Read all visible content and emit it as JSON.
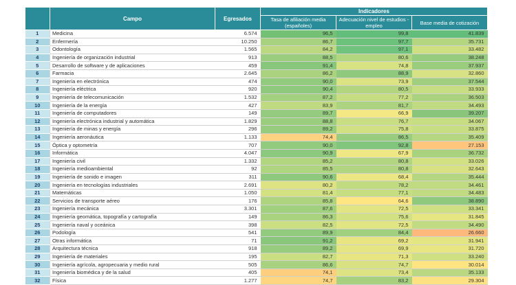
{
  "header": {
    "campo": "Campo",
    "egresados": "Egresados",
    "indicadores": "Indicadores",
    "tasa": "Tasa de afiliación media (españoles)",
    "adecuacion": "Adecuación nivel de estudios - empleo",
    "base": "Base media de cotización"
  },
  "rows": [
    {
      "rank": "1",
      "campo": "Medicina",
      "egresados": "6.574",
      "tasa": "96,5",
      "adec": "99,8",
      "base": "41.839",
      "c1": "#74c074",
      "c2": "#63be7b",
      "c3": "#63be7b"
    },
    {
      "rank": "2",
      "campo": "Enfermería",
      "egresados": "10.250",
      "tasa": "86,7",
      "adec": "97,7",
      "base": "35.731",
      "c1": "#a8d27f",
      "c2": "#6dc27b",
      "c3": "#b4d680"
    },
    {
      "rank": "3",
      "campo": "Odontología",
      "egresados": "1.565",
      "tasa": "84,2",
      "adec": "97,1",
      "base": "33.482",
      "c1": "#bcd981",
      "c2": "#70c37c",
      "c3": "#cfe083"
    },
    {
      "rank": "4",
      "campo": "Ingeniería de organización industrial",
      "egresados": "913",
      "tasa": "88,5",
      "adec": "80,6",
      "base": "38.248",
      "c1": "#9bcd7e",
      "c2": "#b2d580",
      "c3": "#96cc7e"
    },
    {
      "rank": "5",
      "campo": "Desarrollo de software y de aplicaciones",
      "egresados": "459",
      "tasa": "91,4",
      "adec": "74,8",
      "base": "37.937",
      "c1": "#88c67c",
      "c2": "#d7e283",
      "c3": "#9acd7e"
    },
    {
      "rank": "6",
      "campo": "Farmacia",
      "egresados": "2.645",
      "tasa": "86,2",
      "adec": "88,9",
      "base": "32.860",
      "c1": "#abd37f",
      "c2": "#8ec97d",
      "c3": "#d6e283"
    },
    {
      "rank": "7",
      "campo": "Ingeniería en electrónica",
      "egresados": "474",
      "tasa": "90,0",
      "adec": "73,9",
      "base": "37.544",
      "c1": "#92cb7d",
      "c2": "#dbe383",
      "c3": "#9fcf7f"
    },
    {
      "rank": "8",
      "campo": "Ingeniería eléctrica",
      "egresados": "920",
      "tasa": "90,4",
      "adec": "80,5",
      "base": "33.933",
      "c1": "#8fc97d",
      "c2": "#b3d580",
      "c3": "#c8de82"
    },
    {
      "rank": "9",
      "campo": "Ingeniería de telecomunicación",
      "egresados": "1.532",
      "tasa": "87,2",
      "adec": "77,2",
      "base": "36.503",
      "c1": "#a4d17f",
      "c2": "#c6dd82",
      "c3": "#abd37f"
    },
    {
      "rank": "10",
      "campo": "Ingeniería de la energía",
      "egresados": "427",
      "tasa": "83,9",
      "adec": "81,7",
      "base": "34.493",
      "c1": "#bfda81",
      "c2": "#acd37f",
      "c3": "#c0db82"
    },
    {
      "rank": "11",
      "campo": "Ingeniería de computadores",
      "egresados": "149",
      "tasa": "89,7",
      "adec": "66,9",
      "base": "39.207",
      "c1": "#95cb7e",
      "c2": "#f4e884",
      "c3": "#89c67c"
    },
    {
      "rank": "12",
      "campo": "Ingeniería electrónica industrial y automática",
      "egresados": "1.829",
      "tasa": "88,8",
      "adec": "76,7",
      "base": "34.067",
      "c1": "#9acd7e",
      "c2": "#c9de82",
      "c3": "#c6dd82"
    },
    {
      "rank": "13",
      "campo": "Ingeniería de minas y energía",
      "egresados": "296",
      "tasa": "89,2",
      "adec": "75,8",
      "base": "33.875",
      "c1": "#97cc7e",
      "c2": "#d0e082",
      "c3": "#c8de82"
    },
    {
      "rank": "14",
      "campo": "Ingeniería aeronáutica",
      "egresados": "1.133",
      "tasa": "74,4",
      "adec": "86,5",
      "base": "35.409",
      "c1": "#fed280",
      "c2": "#98cc7e",
      "c3": "#b6d781"
    },
    {
      "rank": "15",
      "campo": "Óptica y optometría",
      "egresados": "707",
      "tasa": "90,0",
      "adec": "92,8",
      "base": "27.153",
      "c1": "#92cb7d",
      "c2": "#82c57c",
      "c3": "#fec57d"
    },
    {
      "rank": "16",
      "campo": "Informática",
      "egresados": "4.047",
      "tasa": "90,9",
      "adec": "67,9",
      "base": "36.732",
      "c1": "#8cc87d",
      "c2": "#efe784",
      "c3": "#a9d27f"
    },
    {
      "rank": "17",
      "campo": "Ingeniería civil",
      "egresados": "1.332",
      "tasa": "85,2",
      "adec": "80,8",
      "base": "33.026",
      "c1": "#b2d580",
      "c2": "#b1d580",
      "c3": "#d2e182"
    },
    {
      "rank": "18",
      "campo": "Ingeniería medioambiental",
      "egresados": "92",
      "tasa": "85,5",
      "adec": "80,8",
      "base": "32.643",
      "c1": "#b0d580",
      "c2": "#b1d580",
      "c3": "#d9e283"
    },
    {
      "rank": "19",
      "campo": "Ingeniería de sonido e imagen",
      "egresados": "311",
      "tasa": "90,6",
      "adec": "68,4",
      "base": "35.444",
      "c1": "#8ec97d",
      "c2": "#ece684",
      "c3": "#b6d781"
    },
    {
      "rank": "20",
      "campo": "Ingeniería en tecnologías industriales",
      "egresados": "2.691",
      "tasa": "80,2",
      "adec": "78,2",
      "base": "34.461",
      "c1": "#dde383",
      "c2": "#c1db81",
      "c3": "#c0db82"
    },
    {
      "rank": "21",
      "campo": "Matemáticas",
      "egresados": "1.050",
      "tasa": "81,4",
      "adec": "77,1",
      "base": "34.483",
      "c1": "#d4e182",
      "c2": "#c7dd82",
      "c3": "#c0db82"
    },
    {
      "rank": "22",
      "campo": "Servicios de transporte aéreo",
      "egresados": "176",
      "tasa": "85,8",
      "adec": "64,6",
      "base": "38.890",
      "c1": "#aed480",
      "c2": "#fee683",
      "c3": "#8ec97d"
    },
    {
      "rank": "23",
      "campo": "Ingeniería mecánica",
      "egresados": "3.301",
      "tasa": "87,6",
      "adec": "72,5",
      "base": "33.341",
      "c1": "#a1d07f",
      "c2": "#e2e583",
      "c3": "#cfe083"
    },
    {
      "rank": "24",
      "campo": "Ingeniería geomática, topografía y cartografía",
      "egresados": "149",
      "tasa": "86,3",
      "adec": "75,6",
      "base": "31.845",
      "c1": "#aad37f",
      "c2": "#d2e182",
      "c3": "#e6e683"
    },
    {
      "rank": "25",
      "campo": "Ingeniería naval y oceánica",
      "egresados": "398",
      "tasa": "82,5",
      "adec": "72,5",
      "base": "34.490",
      "c1": "#cbdf82",
      "c2": "#e2e583",
      "c3": "#c0db82"
    },
    {
      "rank": "26",
      "campo": "Podología",
      "egresados": "541",
      "tasa": "89,9",
      "adec": "84,4",
      "base": "26.660",
      "c1": "#93cb7e",
      "c2": "#a1d07f",
      "c3": "#fdb87b"
    },
    {
      "rank": "27",
      "campo": "Otras informática",
      "egresados": "71",
      "tasa": "91,2",
      "adec": "69,2",
      "base": "31.941",
      "c1": "#8ac77c",
      "c2": "#e8e583",
      "c3": "#e4e583"
    },
    {
      "rank": "28",
      "campo": "Arquitectura técnica",
      "egresados": "918",
      "tasa": "89,2",
      "adec": "69,9",
      "base": "31.720",
      "c1": "#97cc7e",
      "c2": "#e5e583",
      "c3": "#e8e583"
    },
    {
      "rank": "29",
      "campo": "Ingeniería de materiales",
      "egresados": "195",
      "tasa": "82,7",
      "adec": "71,3",
      "base": "33.240",
      "c1": "#c9df82",
      "c2": "#e8e583",
      "c3": "#cfe083"
    },
    {
      "rank": "30",
      "campo": "Ingeniería agrícola, agropecuaria y medio rural",
      "egresados": "505",
      "tasa": "86,6",
      "adec": "74,7",
      "base": "30.014",
      "c1": "#a8d27f",
      "c2": "#d8e283",
      "c3": "#fee582"
    },
    {
      "rank": "31",
      "campo": "Ingeniería biomédica y de la salud",
      "egresados": "405",
      "tasa": "74,1",
      "adec": "73,4",
      "base": "35.133",
      "c1": "#fece7f",
      "c2": "#dde383",
      "c3": "#bad881"
    },
    {
      "rank": "32",
      "campo": "Física",
      "egresados": "1.277",
      "tasa": "74,7",
      "adec": "83,2",
      "base": "29.304",
      "c1": "#fed580",
      "c2": "#a7d17f",
      "c3": "#fee182"
    }
  ]
}
